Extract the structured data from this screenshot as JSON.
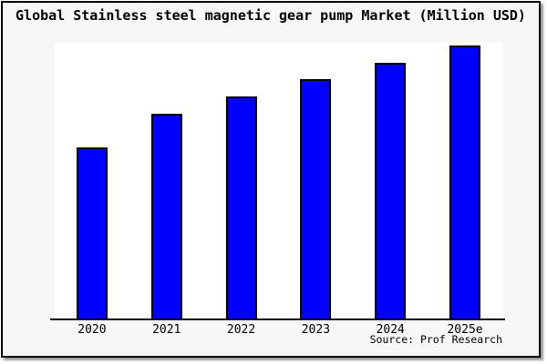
{
  "window": {
    "background_color": "#f7f7f7",
    "plot_background_color": "#ffffff",
    "frame_border_color": "#000000",
    "shadow_color": "#9a9a9a"
  },
  "chart_data": {
    "type": "bar",
    "title": "Global Stainless steel magnetic gear pump Market (Million USD)",
    "categories": [
      "2020",
      "2021",
      "2022",
      "2023",
      "2024",
      "2025e"
    ],
    "values_relative": [
      62.7,
      75.0,
      81.3,
      87.7,
      93.7,
      100
    ],
    "value_note": "no y-axis ticks or gridlines shown; values are bar heights relative to tallest bar (2025e = 100)",
    "xlabel": "",
    "ylabel": "",
    "grid": "off",
    "legend": "none",
    "bar_color": "#0000ff",
    "bar_border_color": "#000000",
    "source_note": "Source: Prof Research"
  }
}
